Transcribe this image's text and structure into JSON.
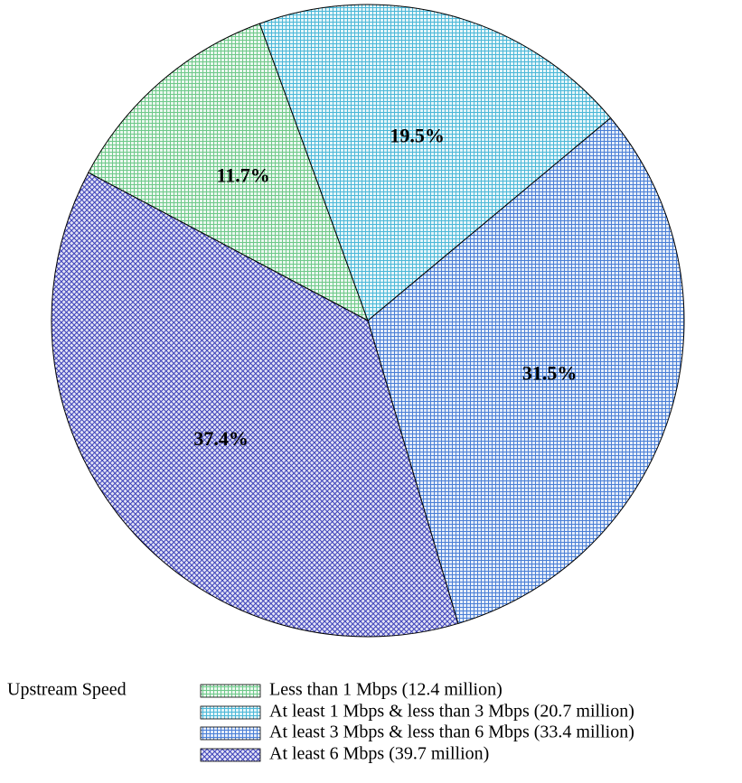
{
  "chart_data": {
    "type": "pie",
    "legend_title": "Upstream Speed",
    "categories": [
      "Less than 1 Mbps (12.4 million)",
      "At least 1 Mbps & less than 3 Mbps (20.7 million)",
      "At least 3 Mbps & less than 6 Mbps (33.4 million)",
      "At least 6 Mbps (39.7 million)"
    ],
    "values": [
      11.7,
      19.5,
      31.5,
      37.4
    ],
    "value_labels": [
      "11.7%",
      "19.5%",
      "31.5%",
      "37.4%"
    ],
    "colors": [
      "#6fc98a",
      "#4cb8d8",
      "#4a7fd6",
      "#3a3fb8"
    ],
    "hatch": [
      "grid",
      "grid",
      "grid",
      "diagonal"
    ]
  }
}
